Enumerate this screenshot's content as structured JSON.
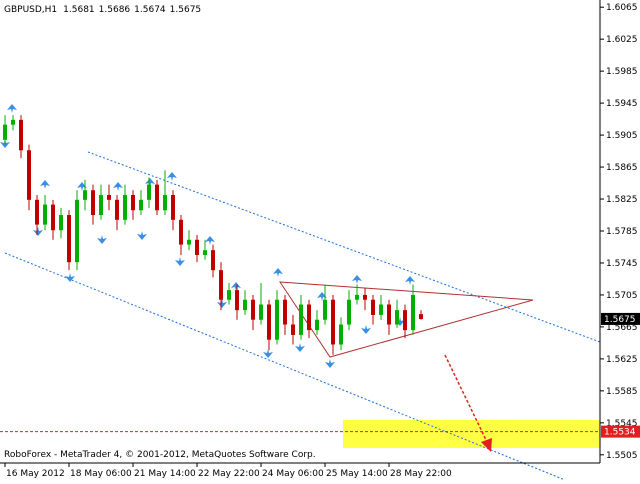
{
  "chart_data": {
    "type": "candlestick",
    "title": "GBPUSD,H1",
    "footer": "RoboForex - MetaTrader 4, © 2001-2012, MetaQuotes Software Corp.",
    "up_color": "#00b000",
    "down_color": "#c00000",
    "open": [
      1.5899,
      1.5918,
      1.5924,
      1.5886,
      1.5824,
      1.5793,
      1.5818,
      1.5786,
      1.5805,
      1.5746,
      1.5824,
      1.5836,
      1.5805,
      1.583,
      1.5824,
      1.5799,
      1.583,
      1.5811,
      1.5824,
      1.5843,
      1.5811,
      1.583,
      1.5799,
      1.5768,
      1.5774,
      1.5755,
      1.5761,
      1.5736,
      1.5699,
      1.5711,
      1.5686,
      1.5699,
      1.5674,
      1.5693,
      1.5649,
      1.5699,
      1.5668,
      1.5655,
      1.5693,
      1.5661,
      1.5674,
      1.5699,
      1.5643,
      1.5668,
      1.5699,
      1.5705,
      1.5699,
      1.568,
      1.5693,
      1.5668,
      1.5686,
      1.5661,
      1.5681
    ],
    "high": [
      1.593,
      1.593,
      1.593,
      1.5893,
      1.583,
      1.583,
      1.5824,
      1.5814,
      1.5811,
      1.5836,
      1.5849,
      1.5843,
      1.5843,
      1.5843,
      1.583,
      1.5843,
      1.5836,
      1.5836,
      1.5852,
      1.5849,
      1.5861,
      1.5836,
      1.5805,
      1.5786,
      1.578,
      1.5774,
      1.5768,
      1.5746,
      1.572,
      1.5718,
      1.5711,
      1.5705,
      1.572,
      1.5699,
      1.5711,
      1.5705,
      1.568,
      1.5705,
      1.5699,
      1.5686,
      1.5718,
      1.5705,
      1.5677,
      1.5711,
      1.5718,
      1.5714,
      1.5705,
      1.5705,
      1.5699,
      1.5699,
      1.5693,
      1.5718,
      1.5686
    ],
    "low": [
      1.5893,
      1.5911,
      1.5876,
      1.5811,
      1.578,
      1.5786,
      1.5774,
      1.5776,
      1.5736,
      1.5736,
      1.5811,
      1.5793,
      1.5799,
      1.5811,
      1.5786,
      1.5793,
      1.5799,
      1.5805,
      1.5814,
      1.5805,
      1.5805,
      1.5786,
      1.5755,
      1.5761,
      1.5746,
      1.5749,
      1.5727,
      1.5686,
      1.5693,
      1.5674,
      1.568,
      1.5661,
      1.5668,
      1.5636,
      1.5643,
      1.5655,
      1.5643,
      1.5649,
      1.5651,
      1.5655,
      1.5668,
      1.563,
      1.5636,
      1.5661,
      1.5693,
      1.5686,
      1.5668,
      1.5674,
      1.5655,
      1.5664,
      1.5651,
      1.5655,
      1.5674
    ],
    "close": [
      1.5918,
      1.5924,
      1.5886,
      1.5824,
      1.5793,
      1.5818,
      1.5786,
      1.5805,
      1.5746,
      1.5824,
      1.5836,
      1.5805,
      1.583,
      1.5824,
      1.5799,
      1.583,
      1.5811,
      1.5824,
      1.5843,
      1.5811,
      1.583,
      1.5799,
      1.5768,
      1.5774,
      1.5755,
      1.5761,
      1.5736,
      1.5699,
      1.5711,
      1.5686,
      1.5699,
      1.5674,
      1.5693,
      1.5649,
      1.5699,
      1.5668,
      1.5655,
      1.5693,
      1.5661,
      1.5674,
      1.5699,
      1.5643,
      1.5668,
      1.5699,
      1.5705,
      1.5699,
      1.568,
      1.5693,
      1.5668,
      1.5686,
      1.5661,
      1.5705,
      1.5675
    ],
    "xlim": [
      -0.625,
      74.375
    ],
    "xticks": [
      {
        "value": 0,
        "label": "16 May 2012"
      },
      {
        "value": 8,
        "label": "18 May 06:00"
      },
      {
        "value": 16,
        "label": "21 May 14:00"
      },
      {
        "value": 24,
        "label": "22 May 22:00"
      },
      {
        "value": 32,
        "label": "24 May 06:00"
      },
      {
        "value": 40,
        "label": "25 May 14:00"
      },
      {
        "value": 48,
        "label": "28 May 22:00"
      }
    ],
    "ylim": [
      1.5496,
      1.6074
    ],
    "yticks": [
      1.6065,
      1.6025,
      1.5985,
      1.5945,
      1.5905,
      1.5865,
      1.5825,
      1.5785,
      1.5745,
      1.5705,
      1.5665,
      1.5625,
      1.5585,
      1.5545,
      1.5505
    ],
    "target_level": 1.5534
  }
}
